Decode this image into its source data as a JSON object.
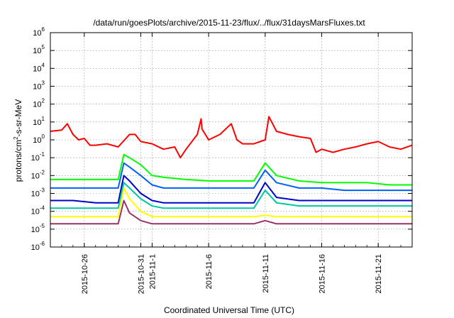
{
  "chart_data": {
    "type": "line",
    "title": "/data/run/goesPlots/archive/2015-11-23/flux/../flux/31daysMarsFluxes.txt",
    "xlabel": "Coordinated Universal Time (UTC)",
    "ylabel": {
      "base": "protons/cm",
      "sup": "2",
      "rest": "-s-sr-MeV"
    },
    "x_range": [
      "2015-10-23",
      "2015-11-24"
    ],
    "y_scale": "log",
    "ylim": [
      1e-06,
      1000000.0
    ],
    "grid": true,
    "x_ticks": [
      {
        "label": "2015-10-26",
        "date": "2015-10-26"
      },
      {
        "label": "2015-10-31",
        "date": "2015-10-31"
      },
      {
        "label": "2015-11-1",
        "date": "2015-11-01"
      },
      {
        "label": "2015-11-6",
        "date": "2015-11-06"
      },
      {
        "label": "2015-11-11",
        "date": "2015-11-11"
      },
      {
        "label": "2015-11-16",
        "date": "2015-11-16"
      },
      {
        "label": "2015-11-21",
        "date": "2015-11-21"
      }
    ],
    "y_ticks": [
      {
        "base": "10",
        "exp": "-6"
      },
      {
        "base": "10",
        "exp": "-5"
      },
      {
        "base": "10",
        "exp": "-4"
      },
      {
        "base": "10",
        "exp": "-3"
      },
      {
        "base": "10",
        "exp": "-2"
      },
      {
        "base": "10",
        "exp": "-1"
      },
      {
        "base": "10",
        "exp": "0"
      },
      {
        "base": "10",
        "exp": "1"
      },
      {
        "base": "10",
        "exp": "2"
      },
      {
        "base": "10",
        "exp": "3"
      },
      {
        "base": "10",
        "exp": "4"
      },
      {
        "base": "10",
        "exp": "5"
      },
      {
        "base": "10",
        "exp": "6"
      }
    ],
    "series": [
      {
        "color": "#ff0000",
        "x": [
          "2015-10-23",
          "2015-10-24",
          "2015-10-24T12",
          "2015-10-25",
          "2015-10-25T12",
          "2015-10-26",
          "2015-10-26T12",
          "2015-10-27",
          "2015-10-28",
          "2015-10-29",
          "2015-10-30",
          "2015-10-30T12",
          "2015-10-31",
          "2015-11-01",
          "2015-11-02",
          "2015-11-03",
          "2015-11-03T12",
          "2015-11-04",
          "2015-11-05",
          "2015-11-05T08",
          "2015-11-05T10",
          "2015-11-06",
          "2015-11-07",
          "2015-11-08",
          "2015-11-08T12",
          "2015-11-09",
          "2015-11-10",
          "2015-11-11",
          "2015-11-11T08",
          "2015-11-12",
          "2015-11-13",
          "2015-11-14",
          "2015-11-15",
          "2015-11-15T12",
          "2015-11-16",
          "2015-11-17",
          "2015-11-18",
          "2015-11-19",
          "2015-11-20",
          "2015-11-21",
          "2015-11-22",
          "2015-11-23",
          "2015-11-24"
        ],
        "y": [
          3,
          3.5,
          8,
          2,
          1,
          1.2,
          0.5,
          0.5,
          0.6,
          0.4,
          2,
          2,
          0.8,
          0.6,
          0.3,
          0.4,
          0.1,
          0.3,
          2,
          15,
          4,
          1,
          2,
          8,
          1,
          0.6,
          0.6,
          1,
          20,
          3,
          2,
          1.5,
          1.2,
          0.2,
          0.3,
          0.2,
          0.3,
          0.4,
          0.6,
          0.8,
          0.4,
          0.3,
          0.5
        ]
      },
      {
        "color": "#00ff00",
        "x": [
          "2015-10-23",
          "2015-10-25",
          "2015-10-27",
          "2015-10-29",
          "2015-10-29T12",
          "2015-10-30",
          "2015-10-31",
          "2015-11-01",
          "2015-11-02",
          "2015-11-04",
          "2015-11-06",
          "2015-11-08",
          "2015-11-10",
          "2015-11-11",
          "2015-11-12",
          "2015-11-14",
          "2015-11-16",
          "2015-11-18",
          "2015-11-20",
          "2015-11-22",
          "2015-11-24"
        ],
        "y": [
          0.006,
          0.006,
          0.006,
          0.006,
          0.15,
          0.1,
          0.04,
          0.01,
          0.008,
          0.006,
          0.005,
          0.005,
          0.005,
          0.05,
          0.01,
          0.005,
          0.004,
          0.004,
          0.004,
          0.003,
          0.003
        ]
      },
      {
        "color": "#0060ff",
        "x": [
          "2015-10-23",
          "2015-10-25",
          "2015-10-27",
          "2015-10-29",
          "2015-10-29T12",
          "2015-10-30",
          "2015-10-31",
          "2015-11-01",
          "2015-11-02",
          "2015-11-04",
          "2015-11-06",
          "2015-11-08",
          "2015-11-10",
          "2015-11-11",
          "2015-11-12",
          "2015-11-14",
          "2015-11-16",
          "2015-11-18",
          "2015-11-20",
          "2015-11-22",
          "2015-11-24"
        ],
        "y": [
          0.002,
          0.002,
          0.002,
          0.002,
          0.05,
          0.03,
          0.01,
          0.003,
          0.002,
          0.002,
          0.002,
          0.002,
          0.002,
          0.02,
          0.004,
          0.002,
          0.002,
          0.0015,
          0.0015,
          0.0015,
          0.0015
        ]
      },
      {
        "color": "#0000cc",
        "x": [
          "2015-10-23",
          "2015-10-25",
          "2015-10-27",
          "2015-10-29",
          "2015-10-29T12",
          "2015-10-30",
          "2015-10-31",
          "2015-11-01",
          "2015-11-02",
          "2015-11-04",
          "2015-11-06",
          "2015-11-08",
          "2015-11-10",
          "2015-11-11",
          "2015-11-12",
          "2015-11-14",
          "2015-11-16",
          "2015-11-18",
          "2015-11-20",
          "2015-11-22",
          "2015-11-24"
        ],
        "y": [
          0.0004,
          0.0004,
          0.0003,
          0.0003,
          0.01,
          0.005,
          0.001,
          0.0004,
          0.0003,
          0.0003,
          0.0003,
          0.0003,
          0.0003,
          0.004,
          0.0006,
          0.0004,
          0.0004,
          0.0004,
          0.0004,
          0.0004,
          0.0004
        ]
      },
      {
        "color": "#00c8a0",
        "x": [
          "2015-10-23",
          "2015-10-25",
          "2015-10-27",
          "2015-10-29",
          "2015-10-29T12",
          "2015-10-30",
          "2015-10-31",
          "2015-11-01",
          "2015-11-02",
          "2015-11-04",
          "2015-11-06",
          "2015-11-08",
          "2015-11-10",
          "2015-11-11",
          "2015-11-12",
          "2015-11-14",
          "2015-11-16",
          "2015-11-18",
          "2015-11-20",
          "2015-11-22",
          "2015-11-24"
        ],
        "y": [
          0.00015,
          0.00015,
          0.00015,
          0.00015,
          0.004,
          0.002,
          0.0005,
          0.0002,
          0.00015,
          0.00015,
          0.00015,
          0.00015,
          0.00015,
          0.0015,
          0.0003,
          0.0002,
          0.0002,
          0.0002,
          0.0002,
          0.0002,
          0.0002
        ]
      },
      {
        "color": "#ffff00",
        "x": [
          "2015-10-23",
          "2015-10-25",
          "2015-10-27",
          "2015-10-29",
          "2015-10-29T12",
          "2015-10-30",
          "2015-10-31",
          "2015-11-01",
          "2015-11-02",
          "2015-11-04",
          "2015-11-06",
          "2015-11-08",
          "2015-11-10",
          "2015-11-11",
          "2015-11-12",
          "2015-11-14",
          "2015-11-16",
          "2015-11-18",
          "2015-11-20",
          "2015-11-22",
          "2015-11-24"
        ],
        "y": [
          5e-05,
          5e-05,
          5e-05,
          5e-05,
          0.002,
          0.0005,
          0.0001,
          5e-05,
          5e-05,
          5e-05,
          5e-05,
          5e-05,
          5e-05,
          6e-05,
          5e-05,
          5e-05,
          5e-05,
          5e-05,
          5e-05,
          5e-05,
          5e-05
        ]
      },
      {
        "color": "#993366",
        "x": [
          "2015-10-23",
          "2015-10-25",
          "2015-10-27",
          "2015-10-29",
          "2015-10-29T12",
          "2015-10-30",
          "2015-10-31",
          "2015-11-01",
          "2015-11-02",
          "2015-11-04",
          "2015-11-06",
          "2015-11-08",
          "2015-11-10",
          "2015-11-11",
          "2015-11-12",
          "2015-11-14",
          "2015-11-16",
          "2015-11-18",
          "2015-11-20",
          "2015-11-22",
          "2015-11-24"
        ],
        "y": [
          2e-05,
          2e-05,
          2e-05,
          2e-05,
          0.0004,
          8e-05,
          3e-05,
          2e-05,
          2e-05,
          2e-05,
          2e-05,
          2e-05,
          2e-05,
          3e-05,
          2e-05,
          2e-05,
          2e-05,
          2e-05,
          2e-05,
          2e-05,
          2e-05
        ]
      }
    ]
  }
}
